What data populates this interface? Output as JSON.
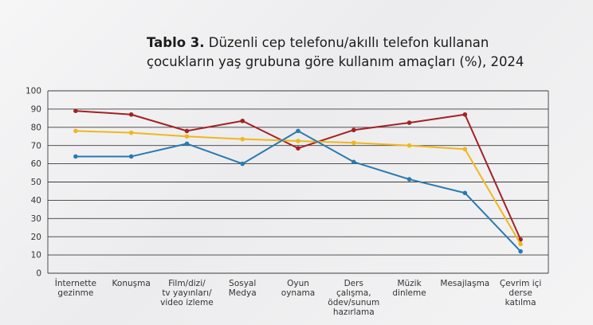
{
  "header": {
    "title_bold": "Tablo 3.",
    "title_rest": " Düzenli cep telefonu/akıllı telefon kullanan",
    "title_line2": "çocukların yaş grubuna göre kullanım amaçları (%), 2024"
  },
  "chart_data": {
    "type": "line",
    "categories": [
      [
        "İnternette",
        "gezinme"
      ],
      [
        "Konuşma"
      ],
      [
        "Film/dizi/",
        "tv yayınları/",
        "video izleme"
      ],
      [
        "Sosyal",
        "Medya"
      ],
      [
        "Oyun",
        "oynama"
      ],
      [
        "Ders",
        "çalışma,",
        "ödev/sunum",
        "hazırlama"
      ],
      [
        "Müzik",
        "dinleme"
      ],
      [
        "Mesajlaşma"
      ],
      [
        "Çevrim içi",
        "derse",
        "katılma"
      ]
    ],
    "ylim": [
      0,
      100
    ],
    "yticks": [
      0,
      10,
      20,
      30,
      40,
      50,
      60,
      70,
      80,
      90,
      100
    ],
    "grid": true,
    "series": [
      {
        "color": "#a32123",
        "values": [
          89,
          87,
          78,
          83.5,
          68.5,
          78.5,
          82.5,
          87,
          18.5
        ]
      },
      {
        "color": "#f0b71d",
        "values": [
          78,
          77,
          75,
          73.5,
          72.5,
          71.5,
          70,
          68,
          16
        ]
      },
      {
        "color": "#2a7ab0",
        "values": [
          64,
          64,
          71,
          60,
          78,
          61,
          51.5,
          44,
          12
        ]
      }
    ]
  }
}
